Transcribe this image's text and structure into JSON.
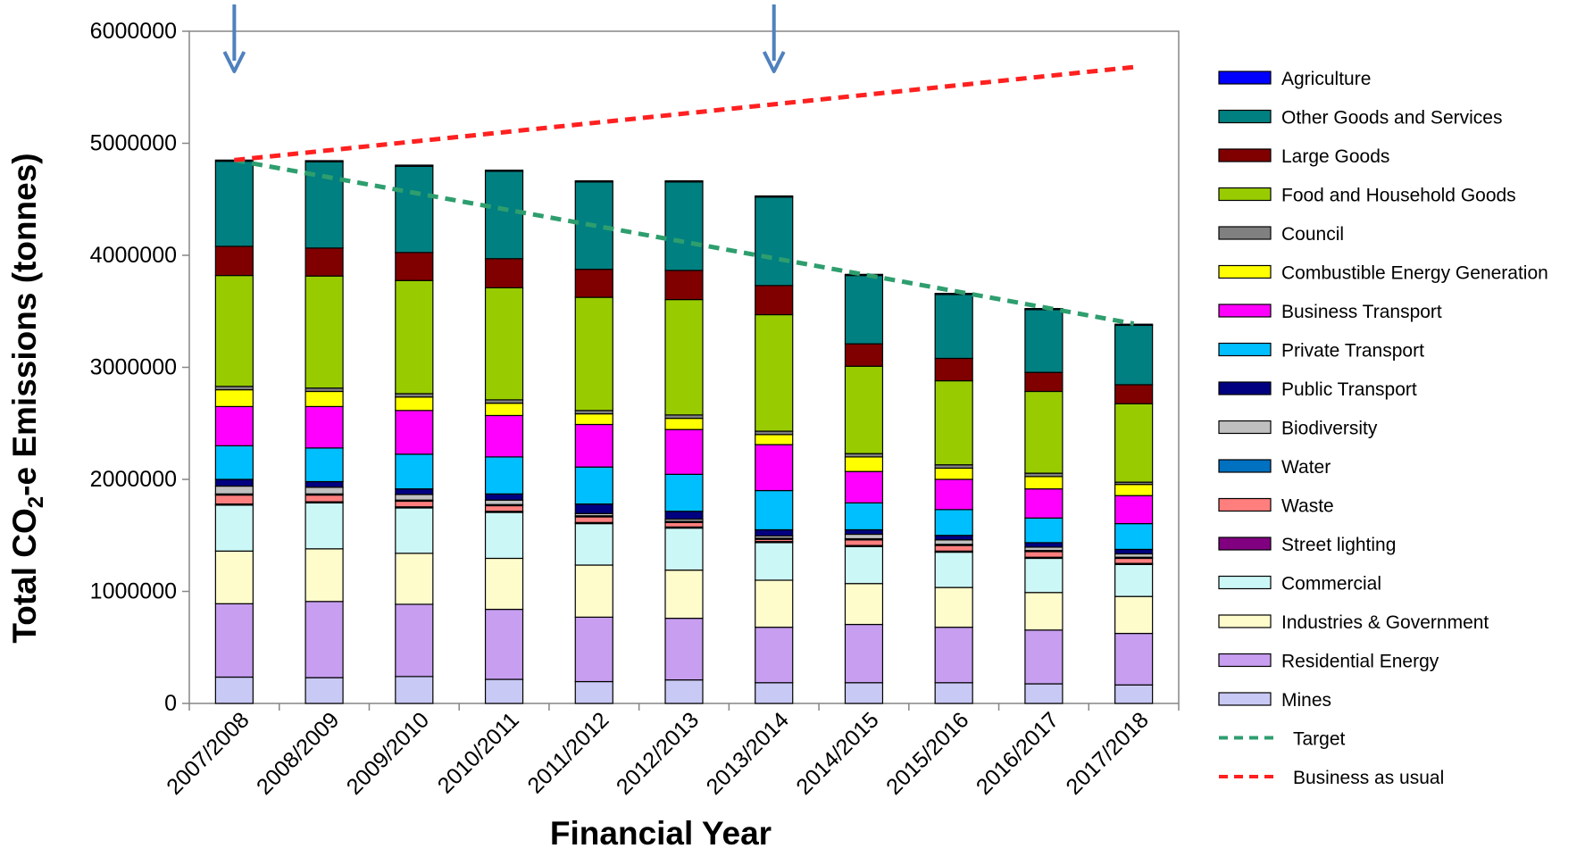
{
  "chart_data": {
    "type": "bar",
    "stacked": true,
    "xlabel": "Financial Year",
    "ylabel": {
      "pre": "Total CO",
      "sub": "2",
      "post": "-e Emissions (tonnes)"
    },
    "ylim": [
      0,
      6000000
    ],
    "yticks": [
      "0",
      "1000000",
      "2000000",
      "3000000",
      "4000000",
      "5000000",
      "6000000"
    ],
    "grid": false,
    "legend_position": "right",
    "categories": [
      "2007/2008",
      "2008/2009",
      "2009/2010",
      "2010/2011",
      "2011/2012",
      "2012/2013",
      "2013/2014",
      "2014/2015",
      "2015/2016",
      "2016/2017",
      "2017/2018"
    ],
    "series": [
      {
        "name": "Mines",
        "color": "#c9c9f5",
        "values": [
          235000,
          230000,
          240000,
          215000,
          195000,
          210000,
          185000,
          185000,
          185000,
          175000,
          165000
        ]
      },
      {
        "name": "Residential Energy",
        "color": "#c79ef0",
        "values": [
          655000,
          680000,
          645000,
          625000,
          575000,
          550000,
          495000,
          520000,
          495000,
          480000,
          460000
        ]
      },
      {
        "name": "Industries & Government",
        "color": "#fffccc",
        "values": [
          470000,
          470000,
          455000,
          455000,
          465000,
          430000,
          420000,
          365000,
          355000,
          335000,
          330000
        ]
      },
      {
        "name": "Commercial",
        "color": "#ccf7f7",
        "values": [
          410000,
          410000,
          405000,
          410000,
          370000,
          375000,
          335000,
          330000,
          315000,
          305000,
          285000
        ]
      },
      {
        "name": "Street lighting",
        "color": "#800080",
        "values": [
          10000,
          10000,
          10000,
          10000,
          10000,
          10000,
          10000,
          10000,
          10000,
          10000,
          10000
        ]
      },
      {
        "name": "Waste",
        "color": "#ff7f7f",
        "values": [
          80000,
          60000,
          50000,
          50000,
          50000,
          40000,
          20000,
          50000,
          50000,
          50000,
          45000
        ]
      },
      {
        "name": "Water",
        "color": "#0070c0",
        "values": [
          10000,
          10000,
          10000,
          10000,
          10000,
          10000,
          10000,
          10000,
          10000,
          10000,
          10000
        ]
      },
      {
        "name": "Biodiversity",
        "color": "#c0c0c0",
        "values": [
          70000,
          60000,
          50000,
          40000,
          20000,
          20000,
          20000,
          40000,
          40000,
          30000,
          30000
        ]
      },
      {
        "name": "Public Transport",
        "color": "#000080",
        "values": [
          60000,
          50000,
          50000,
          55000,
          85000,
          70000,
          55000,
          40000,
          40000,
          40000,
          40000
        ]
      },
      {
        "name": "Private Transport",
        "color": "#00bfff",
        "values": [
          300000,
          300000,
          310000,
          330000,
          330000,
          330000,
          350000,
          240000,
          230000,
          220000,
          230000
        ]
      },
      {
        "name": "Business Transport",
        "color": "#ff00ff",
        "values": [
          350000,
          370000,
          390000,
          370000,
          380000,
          400000,
          410000,
          280000,
          270000,
          260000,
          250000
        ]
      },
      {
        "name": "Combustible Energy Generation",
        "color": "#ffff00",
        "values": [
          150000,
          135000,
          120000,
          110000,
          95000,
          100000,
          90000,
          130000,
          100000,
          110000,
          100000
        ]
      },
      {
        "name": "Council",
        "color": "#808080",
        "values": [
          30000,
          30000,
          30000,
          30000,
          30000,
          30000,
          30000,
          30000,
          30000,
          30000,
          20000
        ]
      },
      {
        "name": "Food and Household Goods",
        "color": "#99cc00",
        "values": [
          990000,
          1000000,
          1010000,
          1000000,
          1010000,
          1030000,
          1040000,
          780000,
          750000,
          730000,
          700000
        ]
      },
      {
        "name": "Large Goods",
        "color": "#800000",
        "values": [
          260000,
          250000,
          250000,
          260000,
          250000,
          260000,
          260000,
          200000,
          200000,
          170000,
          170000
        ]
      },
      {
        "name": "Other Goods and Services",
        "color": "#008080",
        "values": [
          760000,
          770000,
          770000,
          780000,
          780000,
          790000,
          790000,
          610000,
          570000,
          560000,
          530000
        ]
      },
      {
        "name": "Agriculture",
        "color": "#0000ff",
        "values": [
          10000,
          10000,
          10000,
          10000,
          10000,
          10000,
          10000,
          10000,
          10000,
          10000,
          10000
        ]
      }
    ],
    "lines": [
      {
        "name": "Target",
        "color": "#2e9e6e",
        "dashed": true,
        "x": [
          "2007/2008",
          "2017/2018"
        ],
        "y": [
          4850000,
          3390000
        ]
      },
      {
        "name": "Business as usual",
        "color": "#ff2020",
        "dashed": true,
        "x": [
          "2007/2008",
          "2017/2018"
        ],
        "y": [
          4850000,
          5680000
        ]
      }
    ],
    "arrow_markers": {
      "color": "#4f81bd",
      "categories": [
        "2007/2008",
        "2013/2014"
      ]
    }
  }
}
